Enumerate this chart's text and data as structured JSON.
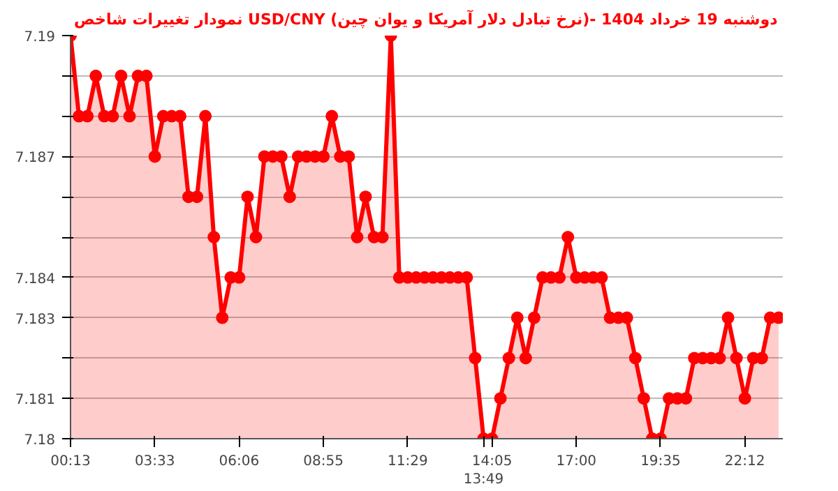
{
  "chart_data": {
    "type": "area",
    "title": "نمودار تغییرات شاخص USD/CNY (نرخ تبادل دلار آمریکا و یوان چین)- دوشنبه  19 خرداد 1404",
    "categories": [
      "00:13",
      null,
      null,
      null,
      null,
      null,
      null,
      null,
      null,
      null,
      "03:33",
      null,
      null,
      null,
      null,
      null,
      null,
      null,
      null,
      null,
      "06:06",
      null,
      null,
      null,
      null,
      null,
      null,
      null,
      null,
      null,
      "08:55",
      null,
      null,
      null,
      null,
      null,
      null,
      null,
      null,
      null,
      "11:29",
      null,
      null,
      null,
      null,
      null,
      null,
      null,
      null,
      "13:49",
      "14:05",
      null,
      null,
      null,
      null,
      null,
      null,
      null,
      null,
      null,
      "17:00",
      null,
      null,
      null,
      null,
      null,
      null,
      null,
      null,
      null,
      "19:35",
      null,
      null,
      null,
      null,
      null,
      null,
      null,
      null,
      null,
      "22:12",
      null,
      null,
      null,
      null
    ],
    "series": [
      {
        "color": "#ff0000",
        "values": [
          7.19,
          7.188,
          7.188,
          7.189,
          7.188,
          7.188,
          7.189,
          7.188,
          7.189,
          7.189,
          7.187,
          7.188,
          7.188,
          7.188,
          7.186,
          7.186,
          7.188,
          7.185,
          7.183,
          7.184,
          7.184,
          7.186,
          7.185,
          7.187,
          7.187,
          7.187,
          7.186,
          7.187,
          7.187,
          7.187,
          7.187,
          7.188,
          7.187,
          7.187,
          7.185,
          7.186,
          7.185,
          7.185,
          7.19,
          7.184,
          7.184,
          7.184,
          7.184,
          7.184,
          7.184,
          7.184,
          7.184,
          7.184,
          7.182,
          7.18,
          7.18,
          7.181,
          7.182,
          7.183,
          7.182,
          7.183,
          7.184,
          7.184,
          7.184,
          7.185,
          7.184,
          7.184,
          7.184,
          7.184,
          7.183,
          7.183,
          7.183,
          7.182,
          7.181,
          7.18,
          7.18,
          7.181,
          7.181,
          7.181,
          7.182,
          7.182,
          7.182,
          7.182,
          7.183,
          7.182,
          7.181,
          7.182,
          7.182,
          7.183,
          7.183
        ]
      }
    ],
    "ylim": [
      7.18,
      7.19
    ],
    "yticks": [
      7.18,
      7.181,
      {
        "value": 7.182,
        "label": null
      },
      7.183,
      7.184,
      {
        "value": 7.185,
        "label": null
      },
      {
        "value": 7.186,
        "label": null
      },
      7.187,
      {
        "value": 7.188,
        "label": null
      },
      {
        "value": 7.189,
        "label": null
      },
      7.19
    ],
    "grid": "y",
    "marker": "circle",
    "line_style": "solid"
  }
}
